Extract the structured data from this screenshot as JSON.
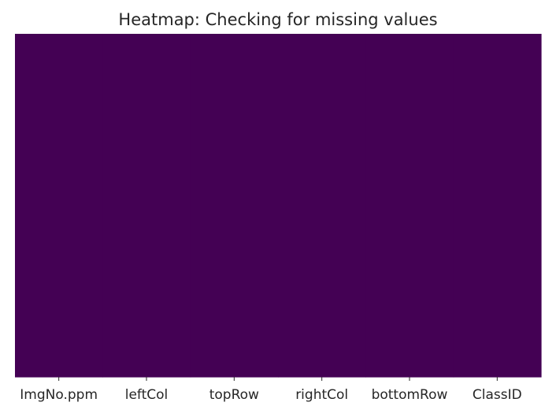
{
  "chart_data": {
    "type": "heatmap",
    "title": "Heatmap: Checking for missing values",
    "xlabel": "",
    "ylabel": "",
    "x_categories": [
      "ImgNo.ppm",
      "leftCol",
      "topRow",
      "rightCol",
      "bottomRow",
      "ClassID"
    ],
    "values": [
      [
        0,
        0,
        0,
        0,
        0,
        0
      ]
    ],
    "colormap": "viridis",
    "colors": {
      "cell": "#440154",
      "text": "#262626",
      "background": "#ffffff"
    },
    "y_tick_labels_shown": false,
    "colorbar": false
  }
}
